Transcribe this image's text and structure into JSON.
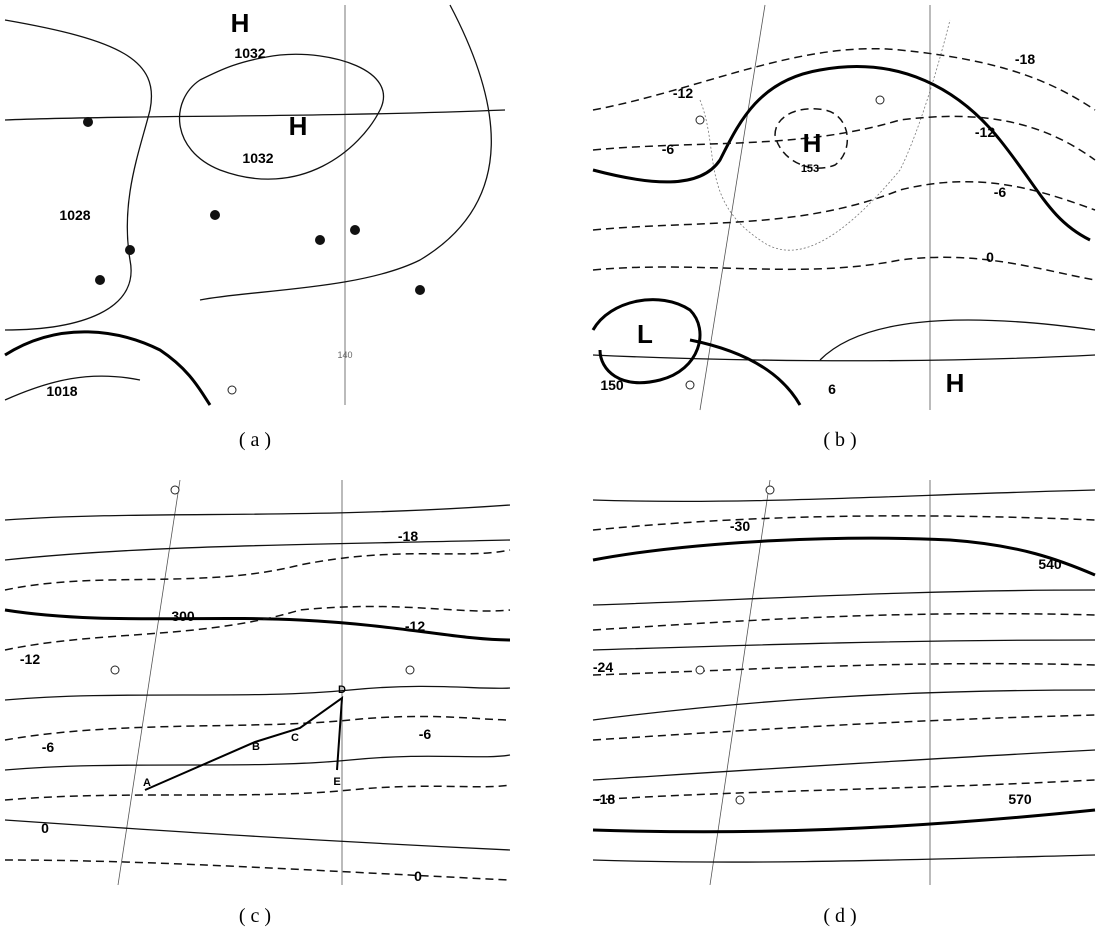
{
  "panels": [
    {
      "label": "( a )",
      "labels": [
        "H",
        "1032",
        "H",
        "1032",
        "1028",
        "1018",
        "140"
      ]
    },
    {
      "label": "( b )",
      "labels": [
        "-18",
        "-12",
        "H",
        "153",
        "-12",
        "-6",
        "-6",
        "0",
        "L",
        "150",
        "H",
        "6"
      ]
    },
    {
      "label": "( c )",
      "labels": [
        "-18",
        "300",
        "-12",
        "-12",
        "-6",
        "-6",
        "A",
        "B",
        "C",
        "D",
        "E",
        "0",
        "0"
      ]
    },
    {
      "label": "( d )",
      "labels": [
        "-30",
        "540",
        "-24",
        "-18",
        "570"
      ]
    }
  ]
}
